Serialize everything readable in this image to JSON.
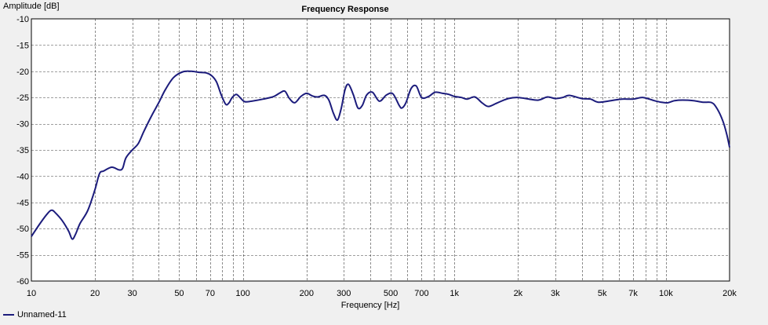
{
  "chart_data": {
    "type": "line",
    "title": "Frequency Response",
    "xlabel": "Frequency [Hz]",
    "ylabel": "Amplitude [dB]",
    "xscale": "log",
    "xlim": [
      10,
      20000
    ],
    "ylim": [
      -60,
      -10
    ],
    "grid": true,
    "legend_position": "bottom-left",
    "x_ticks": [
      {
        "value": 10,
        "label": "10"
      },
      {
        "value": 20,
        "label": "20"
      },
      {
        "value": 30,
        "label": "30"
      },
      {
        "value": 50,
        "label": "50"
      },
      {
        "value": 70,
        "label": "70"
      },
      {
        "value": 100,
        "label": "100"
      },
      {
        "value": 200,
        "label": "200"
      },
      {
        "value": 300,
        "label": "300"
      },
      {
        "value": 500,
        "label": "500"
      },
      {
        "value": 700,
        "label": "700"
      },
      {
        "value": 1000,
        "label": "1k"
      },
      {
        "value": 2000,
        "label": "2k"
      },
      {
        "value": 3000,
        "label": "3k"
      },
      {
        "value": 5000,
        "label": "5k"
      },
      {
        "value": 7000,
        "label": "7k"
      },
      {
        "value": 10000,
        "label": "10k"
      },
      {
        "value": 20000,
        "label": "20k"
      }
    ],
    "y_ticks": [
      {
        "value": -10,
        "label": "-10"
      },
      {
        "value": -15,
        "label": "-15"
      },
      {
        "value": -20,
        "label": "-20"
      },
      {
        "value": -25,
        "label": "-25"
      },
      {
        "value": -30,
        "label": "-30"
      },
      {
        "value": -35,
        "label": "-35"
      },
      {
        "value": -40,
        "label": "-40"
      },
      {
        "value": -45,
        "label": "-45"
      },
      {
        "value": -50,
        "label": "-50"
      },
      {
        "value": -55,
        "label": "-55"
      },
      {
        "value": -60,
        "label": "-60"
      }
    ],
    "series": [
      {
        "name": "Unnamed-11",
        "color": "#1c1c7c",
        "points": [
          [
            10,
            -51.5
          ],
          [
            11,
            -49.0
          ],
          [
            12,
            -47.0
          ],
          [
            12.5,
            -46.5
          ],
          [
            13,
            -47.0
          ],
          [
            14,
            -48.5
          ],
          [
            15,
            -50.5
          ],
          [
            15.6,
            -52.0
          ],
          [
            16.2,
            -51.0
          ],
          [
            17,
            -49.0
          ],
          [
            18.5,
            -46.5
          ],
          [
            20,
            -42.5
          ],
          [
            21,
            -39.5
          ],
          [
            22,
            -39.0
          ],
          [
            24,
            -38.3
          ],
          [
            26,
            -38.8
          ],
          [
            27,
            -38.5
          ],
          [
            28,
            -36.5
          ],
          [
            30,
            -35.0
          ],
          [
            32,
            -33.8
          ],
          [
            34,
            -31.5
          ],
          [
            37,
            -28.5
          ],
          [
            40,
            -26.0
          ],
          [
            43,
            -23.5
          ],
          [
            47,
            -21.2
          ],
          [
            52,
            -20.1
          ],
          [
            57,
            -20.0
          ],
          [
            62,
            -20.2
          ],
          [
            67,
            -20.3
          ],
          [
            71,
            -20.8
          ],
          [
            75,
            -22.0
          ],
          [
            79,
            -24.5
          ],
          [
            83,
            -26.3
          ],
          [
            86,
            -26.0
          ],
          [
            89,
            -25.0
          ],
          [
            93,
            -24.4
          ],
          [
            97,
            -25.0
          ],
          [
            102,
            -25.8
          ],
          [
            110,
            -25.7
          ],
          [
            125,
            -25.3
          ],
          [
            140,
            -24.8
          ],
          [
            150,
            -24.1
          ],
          [
            158,
            -23.8
          ],
          [
            166,
            -25.2
          ],
          [
            176,
            -26.0
          ],
          [
            188,
            -24.8
          ],
          [
            200,
            -24.2
          ],
          [
            213,
            -24.7
          ],
          [
            225,
            -24.9
          ],
          [
            243,
            -24.6
          ],
          [
            255,
            -25.5
          ],
          [
            268,
            -28.0
          ],
          [
            280,
            -29.3
          ],
          [
            292,
            -27.0
          ],
          [
            304,
            -23.5
          ],
          [
            316,
            -22.5
          ],
          [
            333,
            -24.5
          ],
          [
            350,
            -27.0
          ],
          [
            367,
            -26.5
          ],
          [
            385,
            -24.5
          ],
          [
            410,
            -24.0
          ],
          [
            442,
            -25.7
          ],
          [
            478,
            -24.5
          ],
          [
            512,
            -24.3
          ],
          [
            548,
            -26.5
          ],
          [
            565,
            -27.0
          ],
          [
            590,
            -26.0
          ],
          [
            624,
            -23.3
          ],
          [
            660,
            -22.8
          ],
          [
            700,
            -25.0
          ],
          [
            755,
            -24.8
          ],
          [
            810,
            -24.0
          ],
          [
            880,
            -24.2
          ],
          [
            940,
            -24.4
          ],
          [
            1000,
            -24.8
          ],
          [
            1080,
            -25.0
          ],
          [
            1150,
            -25.3
          ],
          [
            1250,
            -24.9
          ],
          [
            1350,
            -26.0
          ],
          [
            1450,
            -26.7
          ],
          [
            1600,
            -26.0
          ],
          [
            1800,
            -25.2
          ],
          [
            2000,
            -25.0
          ],
          [
            2250,
            -25.3
          ],
          [
            2500,
            -25.5
          ],
          [
            2750,
            -24.9
          ],
          [
            3000,
            -25.2
          ],
          [
            3250,
            -25.0
          ],
          [
            3500,
            -24.6
          ],
          [
            4000,
            -25.2
          ],
          [
            4400,
            -25.3
          ],
          [
            4800,
            -25.9
          ],
          [
            5500,
            -25.6
          ],
          [
            6200,
            -25.3
          ],
          [
            7000,
            -25.3
          ],
          [
            7800,
            -25.0
          ],
          [
            8800,
            -25.6
          ],
          [
            9500,
            -25.9
          ],
          [
            10200,
            -26.0
          ],
          [
            11000,
            -25.6
          ],
          [
            12000,
            -25.5
          ],
          [
            13500,
            -25.6
          ],
          [
            15000,
            -25.9
          ],
          [
            16500,
            -26.0
          ],
          [
            17500,
            -27.2
          ],
          [
            18600,
            -29.5
          ],
          [
            19400,
            -32.0
          ],
          [
            20000,
            -34.5
          ]
        ]
      }
    ]
  }
}
